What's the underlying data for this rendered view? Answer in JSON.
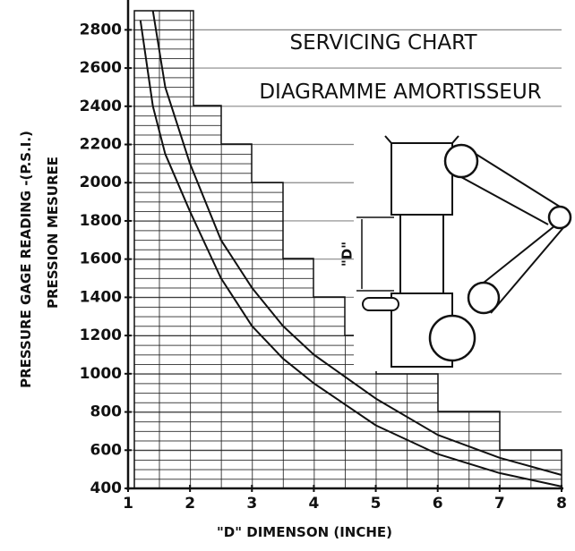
{
  "chart_data": {
    "type": "line",
    "title": "SERVICING CHART",
    "subtitle": "DIAGRAMME AMORTISSEUR",
    "y_label": "PRESSURE GAGE READING -(P.S.I.)",
    "y_label_2": "PRESSION MESUREE",
    "x_label": "\"D\" DIMENSON (INCHE)",
    "diagram_label": "\"D\"",
    "x": [
      1.2,
      1.4,
      1.6,
      2,
      2.5,
      3,
      3.5,
      4,
      5,
      6,
      7,
      8
    ],
    "series": [
      {
        "color": "#111111",
        "values": [
          2850,
          2400,
          2150,
          1850,
          1500,
          1250,
          1080,
          950,
          730,
          580,
          480,
          410
        ]
      },
      {
        "color": "#111111",
        "values": [
          null,
          2900,
          2500,
          2100,
          1700,
          1450,
          1250,
          1100,
          870,
          680,
          560,
          470
        ]
      }
    ],
    "xlim": [
      1,
      8
    ],
    "ylim": [
      400,
      2900
    ],
    "xticks": [
      1,
      2,
      3,
      4,
      5,
      6,
      7,
      8
    ],
    "yticks": [
      400,
      600,
      800,
      1000,
      1200,
      1400,
      1600,
      1800,
      2000,
      2200,
      2400,
      2600,
      2800
    ],
    "grid": true
  }
}
